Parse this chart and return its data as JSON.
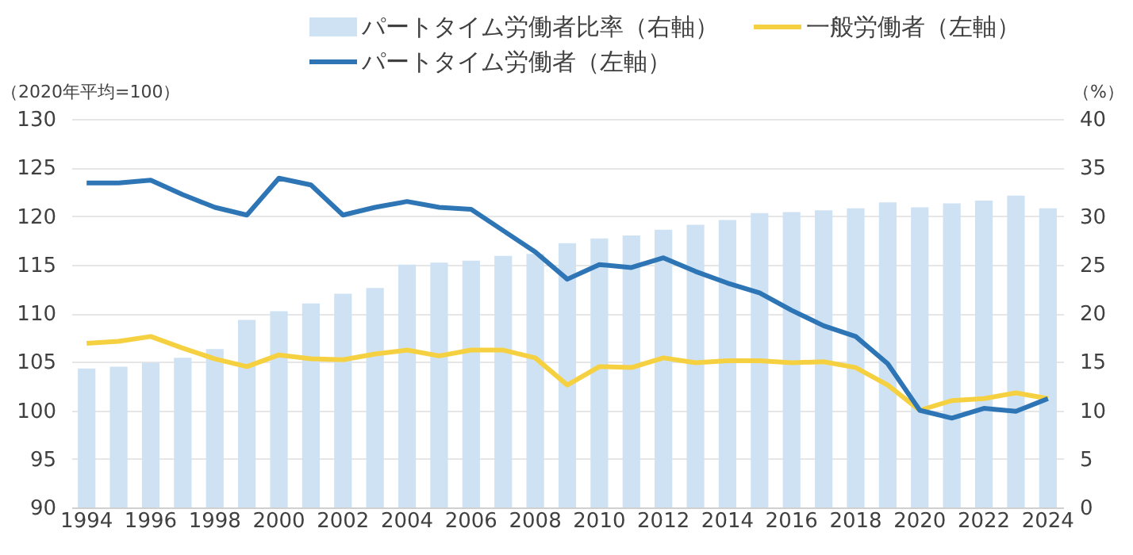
{
  "chart_data": {
    "type": "line",
    "ylabel": "（2020年平均=100）",
    "y2label": "（%）",
    "categories": [
      "1994",
      null,
      "1996",
      null,
      "1998",
      null,
      "2000",
      null,
      "2002",
      null,
      "2004",
      null,
      "2006",
      null,
      "2008",
      null,
      "2010",
      null,
      "2012",
      null,
      "2014",
      null,
      "2016",
      null,
      "2018",
      null,
      "2020",
      null,
      "2022",
      null,
      "2024"
    ],
    "ylim": [
      90,
      130
    ],
    "yticks": [
      90,
      95,
      100,
      105,
      110,
      115,
      120,
      125,
      130
    ],
    "y2lim": [
      0,
      40
    ],
    "y2ticks": [
      0,
      5,
      10,
      15,
      20,
      25,
      30,
      35,
      40
    ],
    "grid": "y",
    "legend": "top",
    "marker": "none",
    "line_style": "solid",
    "series": [
      {
        "name": "パートタイム労働者比率（右軸）",
        "type": "bar",
        "axis": "y2",
        "color": "#cfe2f3",
        "values": [
          14.3,
          14.5,
          14.9,
          15.4,
          16.3,
          19.3,
          20.2,
          21.0,
          22.0,
          22.6,
          25.0,
          25.2,
          25.4,
          25.9,
          26.1,
          27.2,
          27.7,
          28.0,
          28.6,
          29.1,
          29.6,
          30.3,
          30.4,
          30.6,
          30.8,
          31.4,
          30.9,
          31.3,
          31.6,
          32.1,
          30.8
        ]
      },
      {
        "name": "一般労働者（左軸）",
        "color": "#f5d142",
        "values": [
          106.9,
          107.1,
          107.6,
          106.4,
          105.3,
          104.5,
          105.7,
          105.3,
          105.2,
          105.8,
          106.2,
          105.6,
          106.2,
          106.2,
          105.4,
          102.6,
          104.5,
          104.4,
          105.4,
          104.9,
          105.1,
          105.1,
          104.9,
          105.0,
          104.4,
          102.6,
          100.0,
          101.0,
          101.2,
          101.8,
          101.2
        ]
      },
      {
        "name": "パートタイム労働者（左軸）",
        "color": "#2e75b6",
        "values": [
          123.4,
          123.4,
          123.7,
          122.2,
          120.9,
          120.1,
          123.9,
          123.2,
          120.1,
          120.9,
          121.5,
          120.9,
          120.7,
          118.5,
          116.3,
          113.5,
          115.0,
          114.7,
          115.7,
          114.3,
          113.1,
          112.1,
          110.3,
          108.7,
          107.6,
          104.8,
          100.0,
          99.2,
          100.2,
          99.9,
          101.2
        ]
      }
    ]
  }
}
